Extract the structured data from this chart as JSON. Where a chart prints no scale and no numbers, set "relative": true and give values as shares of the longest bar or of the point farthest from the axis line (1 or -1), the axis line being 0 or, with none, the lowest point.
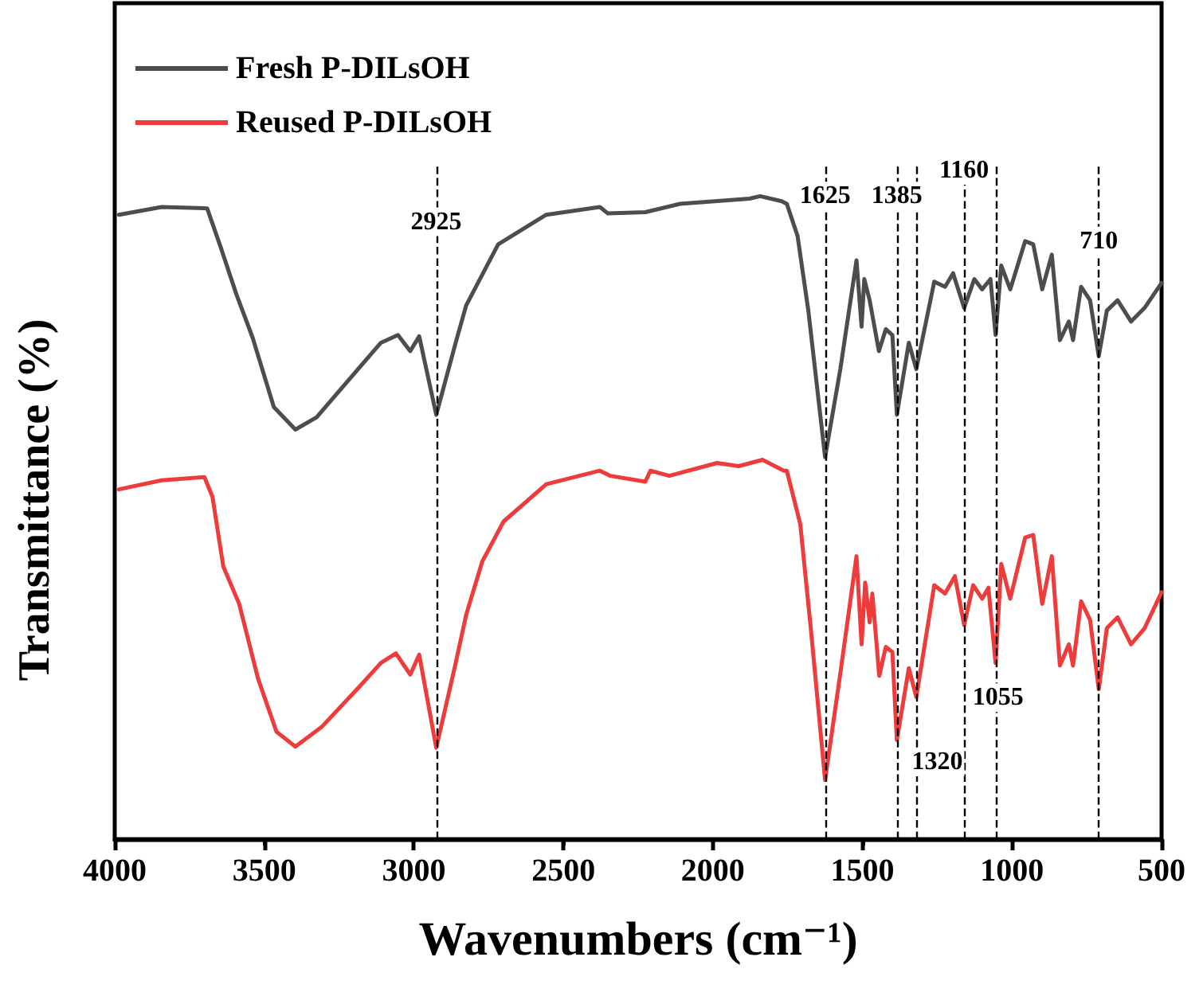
{
  "chart_data": {
    "type": "line",
    "relative": true,
    "xlabel": "Wavenumbers (cm⁻¹)",
    "ylabel": "Transmittance (%)",
    "xlim": [
      4000,
      500
    ],
    "xticks": [
      4000,
      3500,
      3000,
      2500,
      2000,
      1500,
      1000,
      500
    ],
    "legend": "top left",
    "grid": false,
    "marker": "none",
    "line_style": "solid",
    "series": [
      {
        "name": "Fresh P-DILsOH",
        "color": "#4d4d4d",
        "x": [
          3986,
          3843,
          3691,
          3646,
          3593,
          3539,
          3468,
          3396,
          3325,
          3218,
          3110,
          3053,
          3012,
          2982,
          2925,
          2860,
          2825,
          2718,
          2557,
          2378,
          2351,
          2226,
          2110,
          1878,
          1842,
          1770,
          1753,
          1717,
          1681,
          1625,
          1574,
          1520,
          1503,
          1494,
          1476,
          1445,
          1422,
          1400,
          1385,
          1345,
          1320,
          1260,
          1224,
          1197,
          1160,
          1126,
          1100,
          1072,
          1055,
          1036,
          1006,
          956,
          929,
          899,
          867,
          840,
          810,
          796,
          769,
          739,
          710,
          683,
          647,
          602,
          557,
          500
        ],
        "values": [
          0.971,
          0.983,
          0.981,
          0.921,
          0.847,
          0.78,
          0.672,
          0.637,
          0.656,
          0.714,
          0.772,
          0.784,
          0.759,
          0.782,
          0.66,
          0.772,
          0.83,
          0.925,
          0.971,
          0.983,
          0.973,
          0.975,
          0.988,
          0.996,
          1.0,
          0.992,
          0.988,
          0.938,
          0.822,
          0.594,
          0.731,
          0.9,
          0.797,
          0.871,
          0.838,
          0.759,
          0.793,
          0.784,
          0.66,
          0.772,
          0.731,
          0.867,
          0.859,
          0.88,
          0.826,
          0.871,
          0.855,
          0.871,
          0.784,
          0.892,
          0.855,
          0.93,
          0.925,
          0.855,
          0.909,
          0.776,
          0.805,
          0.776,
          0.859,
          0.838,
          0.751,
          0.822,
          0.838,
          0.805,
          0.826,
          0.865
        ]
      },
      {
        "name": "Reused P-DILsOH",
        "color": "#ee3b3b",
        "x": [
          3986,
          3843,
          3700,
          3673,
          3637,
          3584,
          3521,
          3459,
          3396,
          3307,
          3182,
          3110,
          3060,
          3012,
          2982,
          2925,
          2860,
          2825,
          2771,
          2700,
          2557,
          2378,
          2343,
          2226,
          2209,
          2146,
          1986,
          1914,
          1834,
          1763,
          1753,
          1708,
          1672,
          1625,
          1574,
          1520,
          1503,
          1491,
          1476,
          1467,
          1444,
          1422,
          1400,
          1385,
          1345,
          1320,
          1260,
          1224,
          1191,
          1160,
          1130,
          1100,
          1079,
          1055,
          1036,
          1006,
          956,
          929,
          899,
          867,
          840,
          810,
          796,
          769,
          739,
          710,
          683,
          647,
          602,
          557,
          500
        ],
        "values": [
          0.544,
          0.558,
          0.563,
          0.532,
          0.424,
          0.366,
          0.25,
          0.167,
          0.144,
          0.175,
          0.237,
          0.274,
          0.289,
          0.256,
          0.287,
          0.142,
          0.274,
          0.349,
          0.432,
          0.494,
          0.552,
          0.573,
          0.565,
          0.556,
          0.573,
          0.565,
          0.585,
          0.58,
          0.59,
          0.573,
          0.573,
          0.49,
          0.324,
          0.092,
          0.258,
          0.44,
          0.303,
          0.399,
          0.337,
          0.382,
          0.254,
          0.299,
          0.291,
          0.154,
          0.266,
          0.221,
          0.395,
          0.382,
          0.409,
          0.333,
          0.395,
          0.374,
          0.391,
          0.274,
          0.428,
          0.374,
          0.469,
          0.473,
          0.366,
          0.44,
          0.27,
          0.303,
          0.27,
          0.37,
          0.341,
          0.233,
          0.328,
          0.345,
          0.303,
          0.328,
          0.384
        ]
      }
    ],
    "ref_lines": [
      {
        "axis": "x",
        "value": 2925,
        "color": "#000000",
        "line_style": "dashed"
      },
      {
        "axis": "x",
        "value": 1625,
        "color": "#000000",
        "line_style": "dashed"
      },
      {
        "axis": "x",
        "value": 1385,
        "color": "#000000",
        "line_style": "dashed"
      },
      {
        "axis": "x",
        "value": 1320,
        "color": "#000000",
        "line_style": "dashed"
      },
      {
        "axis": "x",
        "value": 1160,
        "color": "#000000",
        "line_style": "dashed"
      },
      {
        "axis": "x",
        "value": 1055,
        "color": "#000000",
        "line_style": "dashed"
      },
      {
        "axis": "x",
        "value": 710,
        "color": "#000000",
        "line_style": "dashed"
      }
    ],
    "annotations": [
      {
        "text": "2925",
        "x": 2925,
        "y": 0.96
      },
      {
        "text": "1625",
        "x": 1625,
        "y": 1.0
      },
      {
        "text": "1385",
        "x": 1385,
        "y": 1.0
      },
      {
        "text": "1160",
        "x": 1160,
        "y": 1.04
      },
      {
        "text": "710",
        "x": 710,
        "y": 0.93
      },
      {
        "text": "1320",
        "x": 1250,
        "y": 0.12
      },
      {
        "text": "1055",
        "x": 1047,
        "y": 0.22
      }
    ]
  }
}
